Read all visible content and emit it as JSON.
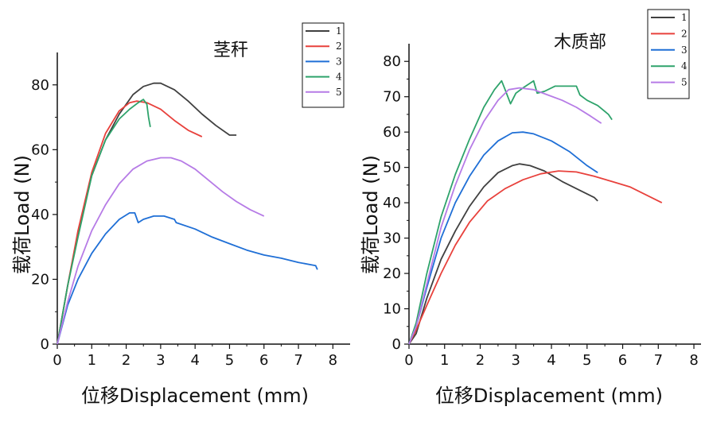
{
  "chart_data": [
    {
      "type": "line",
      "title": "茎秆",
      "xlabel": "位移Displacement (mm)",
      "ylabel": "载荷Load (N)",
      "xlim": [
        0,
        8.5
      ],
      "ylim": [
        0,
        90
      ],
      "xticks": [
        0,
        1,
        2,
        3,
        4,
        5,
        6,
        7,
        8
      ],
      "yticks": [
        0,
        20,
        40,
        60,
        80
      ],
      "legend_position": "top-right",
      "series": [
        {
          "name": "1",
          "color": "#404040",
          "x": [
            0,
            0.3,
            0.6,
            1.0,
            1.4,
            1.8,
            2.2,
            2.5,
            2.8,
            3.0,
            3.4,
            3.8,
            4.2,
            4.6,
            5.0,
            5.2
          ],
          "y": [
            0,
            18,
            34,
            52,
            63,
            71,
            77,
            79.5,
            80.5,
            80.5,
            78.5,
            75,
            71,
            67.5,
            64.5,
            64.5
          ]
        },
        {
          "name": "2",
          "color": "#e8413c",
          "x": [
            0,
            0.3,
            0.6,
            1.0,
            1.4,
            1.8,
            2.1,
            2.3,
            2.6,
            3.0,
            3.4,
            3.8,
            4.2
          ],
          "y": [
            0,
            18,
            35,
            53,
            65,
            72,
            74.5,
            75,
            74.5,
            72.5,
            69,
            66,
            64
          ]
        },
        {
          "name": "3",
          "color": "#1f6fd6",
          "x": [
            0,
            0.3,
            0.6,
            1.0,
            1.4,
            1.8,
            2.1,
            2.25,
            2.35,
            2.5,
            2.8,
            3.1,
            3.4,
            3.45,
            4.0,
            4.5,
            5.0,
            5.5,
            6.0,
            6.5,
            7.0,
            7.5,
            7.55
          ],
          "y": [
            0,
            12,
            20,
            28,
            34,
            38.5,
            40.5,
            40.5,
            37.5,
            38.5,
            39.5,
            39.5,
            38.5,
            37.5,
            35.5,
            33,
            31,
            29,
            27.5,
            26.5,
            25.2,
            24.2,
            23
          ]
        },
        {
          "name": "4",
          "color": "#2ea36b",
          "x": [
            0,
            0.3,
            0.6,
            1.0,
            1.4,
            1.8,
            2.1,
            2.35,
            2.5,
            2.6,
            2.65,
            2.7
          ],
          "y": [
            0,
            18,
            33,
            52,
            63,
            69.5,
            72.5,
            74.5,
            75.5,
            74,
            70,
            67
          ]
        },
        {
          "name": "5",
          "color": "#b67be6",
          "x": [
            0,
            0.3,
            0.6,
            1.0,
            1.4,
            1.8,
            2.2,
            2.6,
            3.0,
            3.3,
            3.6,
            4.0,
            4.4,
            4.8,
            5.2,
            5.6,
            6.0
          ],
          "y": [
            0,
            13,
            24,
            35,
            43,
            49.5,
            54,
            56.5,
            57.5,
            57.5,
            56.5,
            54,
            50.5,
            47,
            44,
            41.5,
            39.5
          ]
        }
      ]
    },
    {
      "type": "line",
      "title": "木质部",
      "xlabel": "位移Displacement (mm)",
      "ylabel": "载荷Load (N)",
      "xlim": [
        0,
        8.2
      ],
      "ylim": [
        0,
        85
      ],
      "xticks": [
        0,
        1,
        2,
        3,
        4,
        5,
        6,
        7,
        8
      ],
      "yticks": [
        0,
        10,
        20,
        30,
        40,
        50,
        60,
        70,
        80
      ],
      "legend_position": "top-right",
      "series": [
        {
          "name": "1",
          "color": "#404040",
          "x": [
            0,
            0.2,
            0.5,
            0.9,
            1.3,
            1.7,
            2.1,
            2.5,
            2.9,
            3.1,
            3.4,
            3.8,
            4.3,
            4.8,
            5.2,
            5.3
          ],
          "y": [
            0,
            3,
            13,
            24,
            32,
            39,
            44.5,
            48.5,
            50.5,
            51,
            50.5,
            49,
            46,
            43.5,
            41.5,
            40.5
          ]
        },
        {
          "name": "2",
          "color": "#e8413c",
          "x": [
            0,
            0.2,
            0.5,
            0.9,
            1.3,
            1.7,
            2.2,
            2.7,
            3.2,
            3.7,
            4.2,
            4.7,
            5.2,
            5.7,
            6.2,
            6.7,
            7.1
          ],
          "y": [
            0,
            4,
            11,
            20,
            28,
            34.5,
            40.5,
            44,
            46.5,
            48.2,
            49,
            48.7,
            47.5,
            46,
            44.5,
            42,
            40
          ]
        },
        {
          "name": "3",
          "color": "#1f6fd6",
          "x": [
            0,
            0.2,
            0.5,
            0.9,
            1.3,
            1.7,
            2.1,
            2.5,
            2.9,
            3.2,
            3.5,
            4.0,
            4.5,
            5.0,
            5.3
          ],
          "y": [
            0,
            5,
            16,
            30,
            40,
            47.5,
            53.5,
            57.5,
            59.8,
            60,
            59.5,
            57.5,
            54.5,
            50.5,
            48.5
          ]
        },
        {
          "name": "4",
          "color": "#2ea36b",
          "x": [
            0,
            0.2,
            0.5,
            0.9,
            1.3,
            1.7,
            2.1,
            2.4,
            2.6,
            2.7,
            2.85,
            3.0,
            3.2,
            3.5,
            3.6,
            3.8,
            4.1,
            4.5,
            4.7,
            4.8,
            5.0,
            5.3,
            5.6,
            5.7
          ],
          "y": [
            0,
            6,
            20,
            36,
            48,
            58,
            67,
            72,
            74.5,
            72,
            68,
            71,
            72.5,
            74.5,
            71,
            71.5,
            73,
            73,
            73,
            70.5,
            69,
            67.5,
            65,
            63.5
          ]
        },
        {
          "name": "5",
          "color": "#b67be6",
          "x": [
            0,
            0.2,
            0.5,
            0.9,
            1.3,
            1.7,
            2.1,
            2.5,
            2.8,
            3.1,
            3.5,
            3.9,
            4.3,
            4.7,
            5.1,
            5.4
          ],
          "y": [
            0,
            5,
            17,
            33,
            45,
            55,
            63,
            69,
            72,
            72.5,
            72,
            70.5,
            69,
            67,
            64.5,
            62.5
          ]
        }
      ]
    }
  ]
}
